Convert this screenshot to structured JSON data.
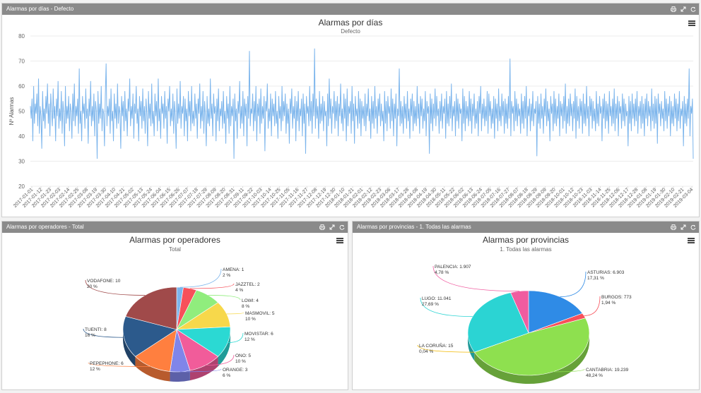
{
  "panels": {
    "days": {
      "header": "Alarmas por días - Defecto"
    },
    "operators": {
      "header": "Alarmas por operadores - Total"
    },
    "provinces": {
      "header": "Alarmas por provincias - 1. Todas las alarmas"
    }
  },
  "icons": {
    "print": "print-icon",
    "expand": "expand-icon",
    "refresh": "refresh-icon",
    "menu": "hamburger-menu-icon"
  },
  "chart_data": [
    {
      "type": "line",
      "title": "Alarmas por días",
      "subtitle": "Defecto",
      "ylabel": "Nº Alarmas",
      "xlabel": "",
      "ylim": [
        20,
        80
      ],
      "yticks": [
        20,
        30,
        40,
        50,
        60,
        70,
        80
      ],
      "grid": true,
      "color": "#7cb5ec",
      "x_tick_labels": [
        "2017-01-01",
        "2017-01-12",
        "2017-01-23",
        "2017-02-03",
        "2017-02-14",
        "2017-02-25",
        "2017-03-08",
        "2017-03-19",
        "2017-03-30",
        "2017-04-10",
        "2017-04-21",
        "2017-05-02",
        "2017-05-13",
        "2017-05-24",
        "2017-06-04",
        "2017-06-15",
        "2017-06-26",
        "2017-07-07",
        "2017-07-18",
        "2017-07-29",
        "2017-08-09",
        "2017-08-20",
        "2017-08-31",
        "2017-09-11",
        "2017-09-22",
        "2017-10-03",
        "2017-10-14",
        "2017-10-25",
        "2017-11-05",
        "2017-11-16",
        "2017-11-27",
        "2017-12-08",
        "2017-12-19",
        "2017-12-30",
        "2018-01-10",
        "2018-01-21",
        "2018-02-01",
        "2018-02-12",
        "2018-02-23",
        "2018-03-06",
        "2018-03-17",
        "2018-03-28",
        "2018-04-08",
        "2018-04-19",
        "2018-04-30",
        "2018-05-11",
        "2018-05-22",
        "2018-06-02",
        "2018-06-13",
        "2018-06-24",
        "2018-07-05",
        "2018-07-16",
        "2018-07-27",
        "2018-08-07",
        "2018-08-18",
        "2018-08-29",
        "2018-09-09",
        "2018-09-20",
        "2018-10-01",
        "2018-10-12",
        "2018-10-23",
        "2018-11-03",
        "2018-11-14",
        "2018-11-25",
        "2018-12-06",
        "2018-12-17",
        "2018-12-28",
        "2019-01-08",
        "2019-01-19",
        "2019-01-30",
        "2019-02-10",
        "2019-02-21",
        "2019-03-04"
      ],
      "values": [
        52,
        47,
        55,
        38,
        60,
        45,
        53,
        49,
        57,
        44,
        63,
        41,
        52,
        48,
        35,
        58,
        46,
        51,
        43,
        56,
        49,
        61,
        45,
        53,
        40,
        57,
        50,
        44,
        59,
        47,
        52,
        38,
        55,
        48,
        62,
        43,
        51,
        46,
        58,
        41,
        54,
        49,
        36,
        60,
        45,
        52,
        47,
        56,
        42,
        53,
        50,
        39,
        57,
        46,
        61,
        44,
        52,
        48,
        55,
        41,
        67,
        45,
        50,
        38,
        56,
        49,
        53,
        43,
        59,
        47,
        51,
        37,
        55,
        48,
        62,
        44,
        52,
        46,
        57,
        40,
        54,
        50,
        31,
        58,
        45,
        53,
        47,
        60,
        42,
        51,
        49,
        36,
        56,
        69,
        44,
        52,
        48,
        55,
        41,
        59,
        46,
        50,
        38,
        57,
        47,
        53,
        43,
        61,
        45,
        52,
        49,
        35,
        56,
        48,
        54,
        42,
        58,
        46,
        51,
        40,
        55,
        50,
        63,
        44,
        52,
        47,
        57,
        39,
        53,
        49,
        60,
        45,
        51,
        38,
        56,
        48,
        54,
        43,
        59,
        46,
        52,
        41,
        55,
        49,
        36,
        58,
        47,
        53,
        44,
        61,
        45,
        50,
        40,
        57,
        48,
        54,
        42,
        63,
        46,
        51,
        39,
        56,
        49,
        53,
        43,
        58,
        47,
        52,
        37,
        55,
        50,
        60,
        44,
        51,
        46,
        57,
        41,
        54,
        48,
        35,
        59,
        45,
        53,
        47,
        62,
        43,
        52,
        49,
        56,
        40,
        55,
        46,
        51,
        38,
        58,
        48,
        54,
        42,
        60,
        45,
        50,
        44,
        57,
        47,
        53,
        39,
        55,
        49,
        61,
        43,
        52,
        46,
        58,
        41,
        54,
        48,
        36,
        56,
        45,
        51,
        44,
        63,
        47,
        53,
        40,
        57,
        49,
        52,
        38,
        55,
        46,
        59,
        42,
        51,
        48,
        54,
        43,
        58,
        45,
        50,
        37,
        56,
        47,
        53,
        41,
        60,
        44,
        52,
        48,
        55,
        31,
        57,
        46,
        51,
        39,
        54,
        49,
        62,
        43,
        52,
        45,
        58,
        40,
        55,
        48,
        53,
        36,
        56,
        47,
        74,
        44,
        51,
        49,
        57,
        42,
        54,
        46,
        60,
        38,
        53,
        48,
        55,
        41,
        59,
        45,
        52,
        47,
        56,
        34,
        54,
        50,
        61,
        43,
        51,
        46,
        57,
        40,
        55,
        48,
        53,
        44,
        58,
        45,
        50,
        39,
        56,
        47,
        52,
        42,
        60,
        46,
        54,
        48,
        57,
        41,
        53,
        45,
        51,
        37,
        55,
        49,
        59,
        43,
        52,
        47,
        56,
        38,
        54,
        46,
        58,
        42,
        51,
        48,
        55,
        40,
        57,
        45,
        53,
        33,
        56,
        49,
        52,
        44,
        60,
        46,
        54,
        41,
        57,
        48,
        75,
        43,
        55,
        47,
        52,
        39,
        58,
        45,
        53,
        46,
        56,
        42,
        54,
        48,
        50,
        36,
        57,
        44,
        63,
        47,
        55,
        41,
        52,
        49,
        58,
        43,
        54,
        46,
        56,
        40,
        53,
        48,
        61,
        45,
        51,
        42,
        57,
        47,
        55,
        38,
        59,
        44,
        52,
        49,
        54,
        41,
        60,
        46,
        53,
        37,
        56,
        48,
        51,
        43,
        58,
        45,
        55,
        40,
        54,
        47,
        52,
        44,
        57,
        42,
        53,
        48,
        59,
        46,
        51,
        39,
        56,
        45,
        54,
        43,
        60,
        47,
        52,
        41,
        55,
        48,
        57,
        44,
        53,
        46,
        50,
        38,
        58,
        45,
        54,
        42,
        56,
        49,
        52,
        43,
        59,
        46,
        55,
        40,
        53,
        47,
        57,
        36,
        51,
        48,
        67,
        44,
        54,
        45,
        52,
        41,
        56,
        47,
        53,
        43,
        58,
        46,
        51,
        39,
        55,
        48,
        57,
        42,
        54,
        45,
        52,
        44,
        60,
        47,
        53,
        41,
        56,
        48,
        55,
        43,
        51,
        46,
        58,
        40,
        54,
        49,
        52,
        33,
        57,
        45,
        55,
        42,
        53,
        47,
        59,
        44,
        56,
        48,
        51,
        41,
        54,
        46,
        57,
        43,
        52,
        49,
        55,
        39,
        58,
        45,
        53,
        44,
        56,
        47,
        61,
        42,
        52,
        48,
        54,
        40,
        57,
        46,
        55,
        43,
        53,
        49,
        51,
        38,
        59,
        45,
        56,
        42,
        54,
        47,
        52,
        44,
        58,
        46,
        55,
        41,
        53,
        48,
        57,
        43,
        51,
        45,
        54,
        40,
        56,
        49,
        60,
        42,
        53,
        47,
        55,
        44,
        52,
        46,
        58,
        41,
        57,
        48,
        54,
        43,
        51,
        45,
        56,
        39,
        55,
        47,
        53,
        42,
        59,
        46,
        52,
        44,
        57,
        48,
        54,
        41,
        55,
        45,
        53,
        43,
        56,
        47,
        71,
        40,
        54,
        49,
        52,
        42,
        58,
        46,
        55,
        44,
        53,
        48,
        51,
        41,
        57,
        45,
        54,
        43,
        56,
        47,
        60,
        40,
        52,
        48,
        55,
        42,
        53,
        46,
        58,
        44,
        51,
        49,
        54,
        32,
        56,
        45,
        53,
        43,
        57,
        47,
        52,
        41,
        55,
        48,
        59,
        44,
        54,
        46,
        51,
        38,
        56,
        49,
        53,
        42,
        58,
        45,
        55,
        44,
        52,
        47,
        57,
        40,
        54,
        48,
        53,
        43,
        56,
        46,
        61,
        41,
        52,
        45,
        55,
        44,
        57,
        48,
        53,
        42,
        54,
        47,
        59,
        39,
        56,
        46,
        52,
        43,
        55,
        48,
        54,
        41,
        57,
        45,
        53,
        44,
        60,
        47,
        52,
        40,
        56,
        48,
        55,
        43,
        54,
        46,
        51,
        42,
        58,
        45,
        53,
        44,
        56,
        49,
        52,
        38,
        55,
        47,
        57,
        43,
        54,
        46,
        53,
        41,
        58,
        48,
        52,
        44,
        55,
        45,
        59,
        42,
        53,
        47,
        56,
        40,
        54,
        49,
        52,
        43,
        57,
        46,
        55,
        44,
        53,
        48,
        50,
        36,
        56,
        45,
        54,
        42,
        57,
        47,
        53,
        44,
        55,
        46,
        58,
        41,
        52,
        48,
        54,
        43,
        56,
        45,
        53,
        40,
        55,
        47,
        57,
        44,
        54,
        48,
        52,
        42,
        59,
        46,
        53,
        43,
        56,
        45,
        55,
        37,
        57,
        49,
        53,
        44,
        54,
        47,
        51,
        42,
        58,
        46,
        55,
        43,
        53,
        48,
        56,
        40,
        54,
        45,
        52,
        44,
        57,
        47,
        55,
        42,
        53,
        46,
        58,
        43,
        51,
        48,
        54,
        36,
        56,
        45,
        53,
        44,
        55,
        47,
        67,
        40,
        52,
        49,
        55,
        31
      ]
    },
    {
      "type": "pie",
      "title": "Alarmas por operadores",
      "subtitle": "Total",
      "slices": [
        {
          "name": "AMENA",
          "value": 1,
          "pct": "2 %",
          "color": "#7cb5ec"
        },
        {
          "name": "JAZZTEL",
          "value": 2,
          "pct": "4 %",
          "color": "#f7505a"
        },
        {
          "name": "LOWI",
          "value": 4,
          "pct": "8 %",
          "color": "#90ed7d"
        },
        {
          "name": "MASMOVIL",
          "value": 5,
          "pct": "10 %",
          "color": "#f7d84b"
        },
        {
          "name": "MOVISTAR",
          "value": 6,
          "pct": "12 %",
          "color": "#2bd9d3"
        },
        {
          "name": "ONO",
          "value": 5,
          "pct": "10 %",
          "color": "#f15c9a"
        },
        {
          "name": "ORANGE",
          "value": 3,
          "pct": "6 %",
          "color": "#8085e9"
        },
        {
          "name": "PEPEPHONE",
          "value": 6,
          "pct": "12 %",
          "color": "#ff7f3f"
        },
        {
          "name": "TUENTI",
          "value": 8,
          "pct": "16 %",
          "color": "#2c5a8c"
        },
        {
          "name": "VODAFONE",
          "value": 10,
          "pct": "20 %",
          "color": "#a04a4a"
        }
      ]
    },
    {
      "type": "pie",
      "title": "Alarmas por provincias",
      "subtitle": "1. Todas las alarmas",
      "slices": [
        {
          "name": "ASTURIAS",
          "value": "6.903",
          "num": 6903,
          "pct": "17,31 %",
          "color": "#2f8be6"
        },
        {
          "name": "BURGOS",
          "value": "773",
          "num": 773,
          "pct": "1,94 %",
          "color": "#f7505a"
        },
        {
          "name": "CANTABRIA",
          "value": "19.239",
          "num": 19239,
          "pct": "48,24 %",
          "color": "#8ee04f"
        },
        {
          "name": "LA CORUÑA",
          "value": "15",
          "num": 15,
          "pct": "0,04 %",
          "color": "#f2b800"
        },
        {
          "name": "LUGO",
          "value": "11.041",
          "num": 11041,
          "pct": "27,69 %",
          "color": "#2bd4d3"
        },
        {
          "name": "PALENCIA",
          "value": "1.907",
          "num": 1907,
          "pct": "4,78 %",
          "color": "#f05ca0"
        }
      ]
    }
  ]
}
